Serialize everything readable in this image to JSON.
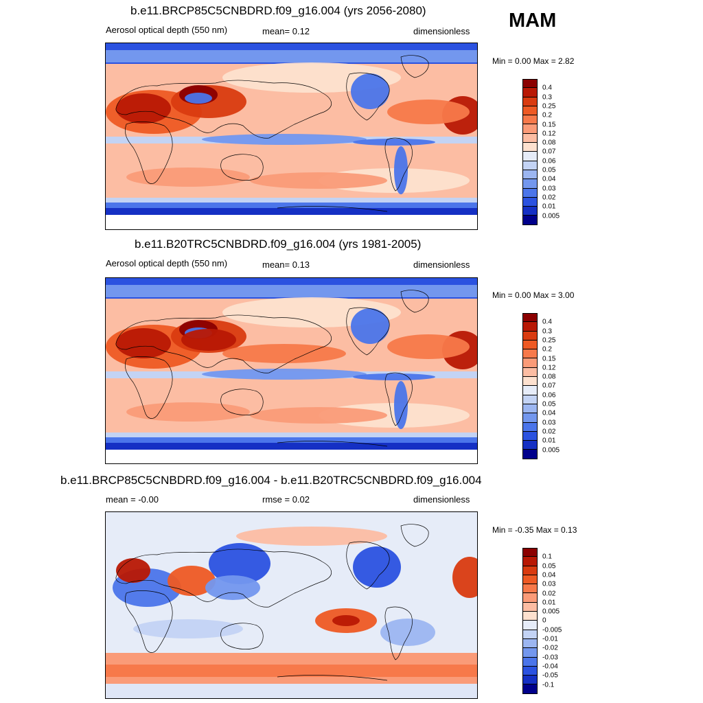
{
  "season": "MAM",
  "panels": [
    {
      "id": "future",
      "title": "b.e11.BRCP85C5CNBDRD.f09_g16.004 (yrs 2056-2080)",
      "left_label": "Aerosol optical depth (550 nm)",
      "center_label": "mean=   0.12",
      "right_label": "dimensionless",
      "minmax": "Min =    0.00 Max =    2.82"
    },
    {
      "id": "historical",
      "title": "b.e11.B20TRC5CNBDRD.f09_g16.004 (yrs 1981-2005)",
      "left_label": "Aerosol optical depth (550 nm)",
      "center_label": "mean=   0.13",
      "right_label": "dimensionless",
      "minmax": "Min =    0.00 Max =    3.00"
    },
    {
      "id": "difference",
      "title": "b.e11.BRCP85C5CNBDRD.f09_g16.004 - b.e11.B20TRC5CNBDRD.f09_g16.004",
      "left_label": "mean =  -0.00",
      "center_label": "rmse =   0.02",
      "right_label": "dimensionless",
      "minmax": "Min =  -0.35 Max =    0.13"
    }
  ],
  "colorbars": {
    "aod": {
      "labels": [
        "0.4",
        "0.3",
        "0.25",
        "0.2",
        "0.15",
        "0.12",
        "0.08",
        "0.07",
        "0.06",
        "0.05",
        "0.04",
        "0.03",
        "0.02",
        "0.01",
        "0.005"
      ],
      "colors": [
        "#8b0000",
        "#b81804",
        "#d93b10",
        "#ee5a24",
        "#f7794a",
        "#fa9b78",
        "#fcbda3",
        "#fde1cf",
        "#e6ecf8",
        "#c3d3f4",
        "#9cb6f1",
        "#7397ee",
        "#4b75ea",
        "#2b52e0",
        "#1530c4",
        "#00008b"
      ]
    },
    "diff": {
      "labels": [
        "0.1",
        "0.05",
        "0.04",
        "0.03",
        "0.02",
        "0.01",
        "0.005",
        "0",
        "-0.005",
        "-0.01",
        "-0.02",
        "-0.03",
        "-0.04",
        "-0.05",
        "-0.1"
      ],
      "colors": [
        "#8b0000",
        "#b81804",
        "#d93b10",
        "#ee5a24",
        "#f7794a",
        "#fa9b78",
        "#fcbda3",
        "#fde1cf",
        "#e6ecf8",
        "#c3d3f4",
        "#9cb6f1",
        "#7397ee",
        "#4b75ea",
        "#2b52e0",
        "#1530c4",
        "#00008b"
      ]
    }
  },
  "chart_data": [
    {
      "type": "heatmap",
      "title": "b.e11.BRCP85C5CNBDRD.f09_g16.004 (yrs 2056-2080)",
      "variable": "Aerosol optical depth (550 nm)",
      "units": "dimensionless",
      "mean": 0.12,
      "min": 0.0,
      "max": 2.82,
      "levels": [
        0.005,
        0.01,
        0.02,
        0.03,
        0.04,
        0.05,
        0.06,
        0.07,
        0.08,
        0.12,
        0.15,
        0.2,
        0.25,
        0.3,
        0.4
      ]
    },
    {
      "type": "heatmap",
      "title": "b.e11.B20TRC5CNBDRD.f09_g16.004 (yrs 1981-2005)",
      "variable": "Aerosol optical depth (550 nm)",
      "units": "dimensionless",
      "mean": 0.13,
      "min": 0.0,
      "max": 3.0,
      "levels": [
        0.005,
        0.01,
        0.02,
        0.03,
        0.04,
        0.05,
        0.06,
        0.07,
        0.08,
        0.12,
        0.15,
        0.2,
        0.25,
        0.3,
        0.4
      ]
    },
    {
      "type": "heatmap",
      "title": "b.e11.BRCP85C5CNBDRD.f09_g16.004 - b.e11.B20TRC5CNBDRD.f09_g16.004",
      "units": "dimensionless",
      "mean": -0.0,
      "rmse": 0.02,
      "min": -0.35,
      "max": 0.13,
      "levels": [
        -0.1,
        -0.05,
        -0.04,
        -0.03,
        -0.02,
        -0.01,
        -0.005,
        0,
        0.005,
        0.01,
        0.02,
        0.03,
        0.04,
        0.05,
        0.1
      ]
    }
  ]
}
